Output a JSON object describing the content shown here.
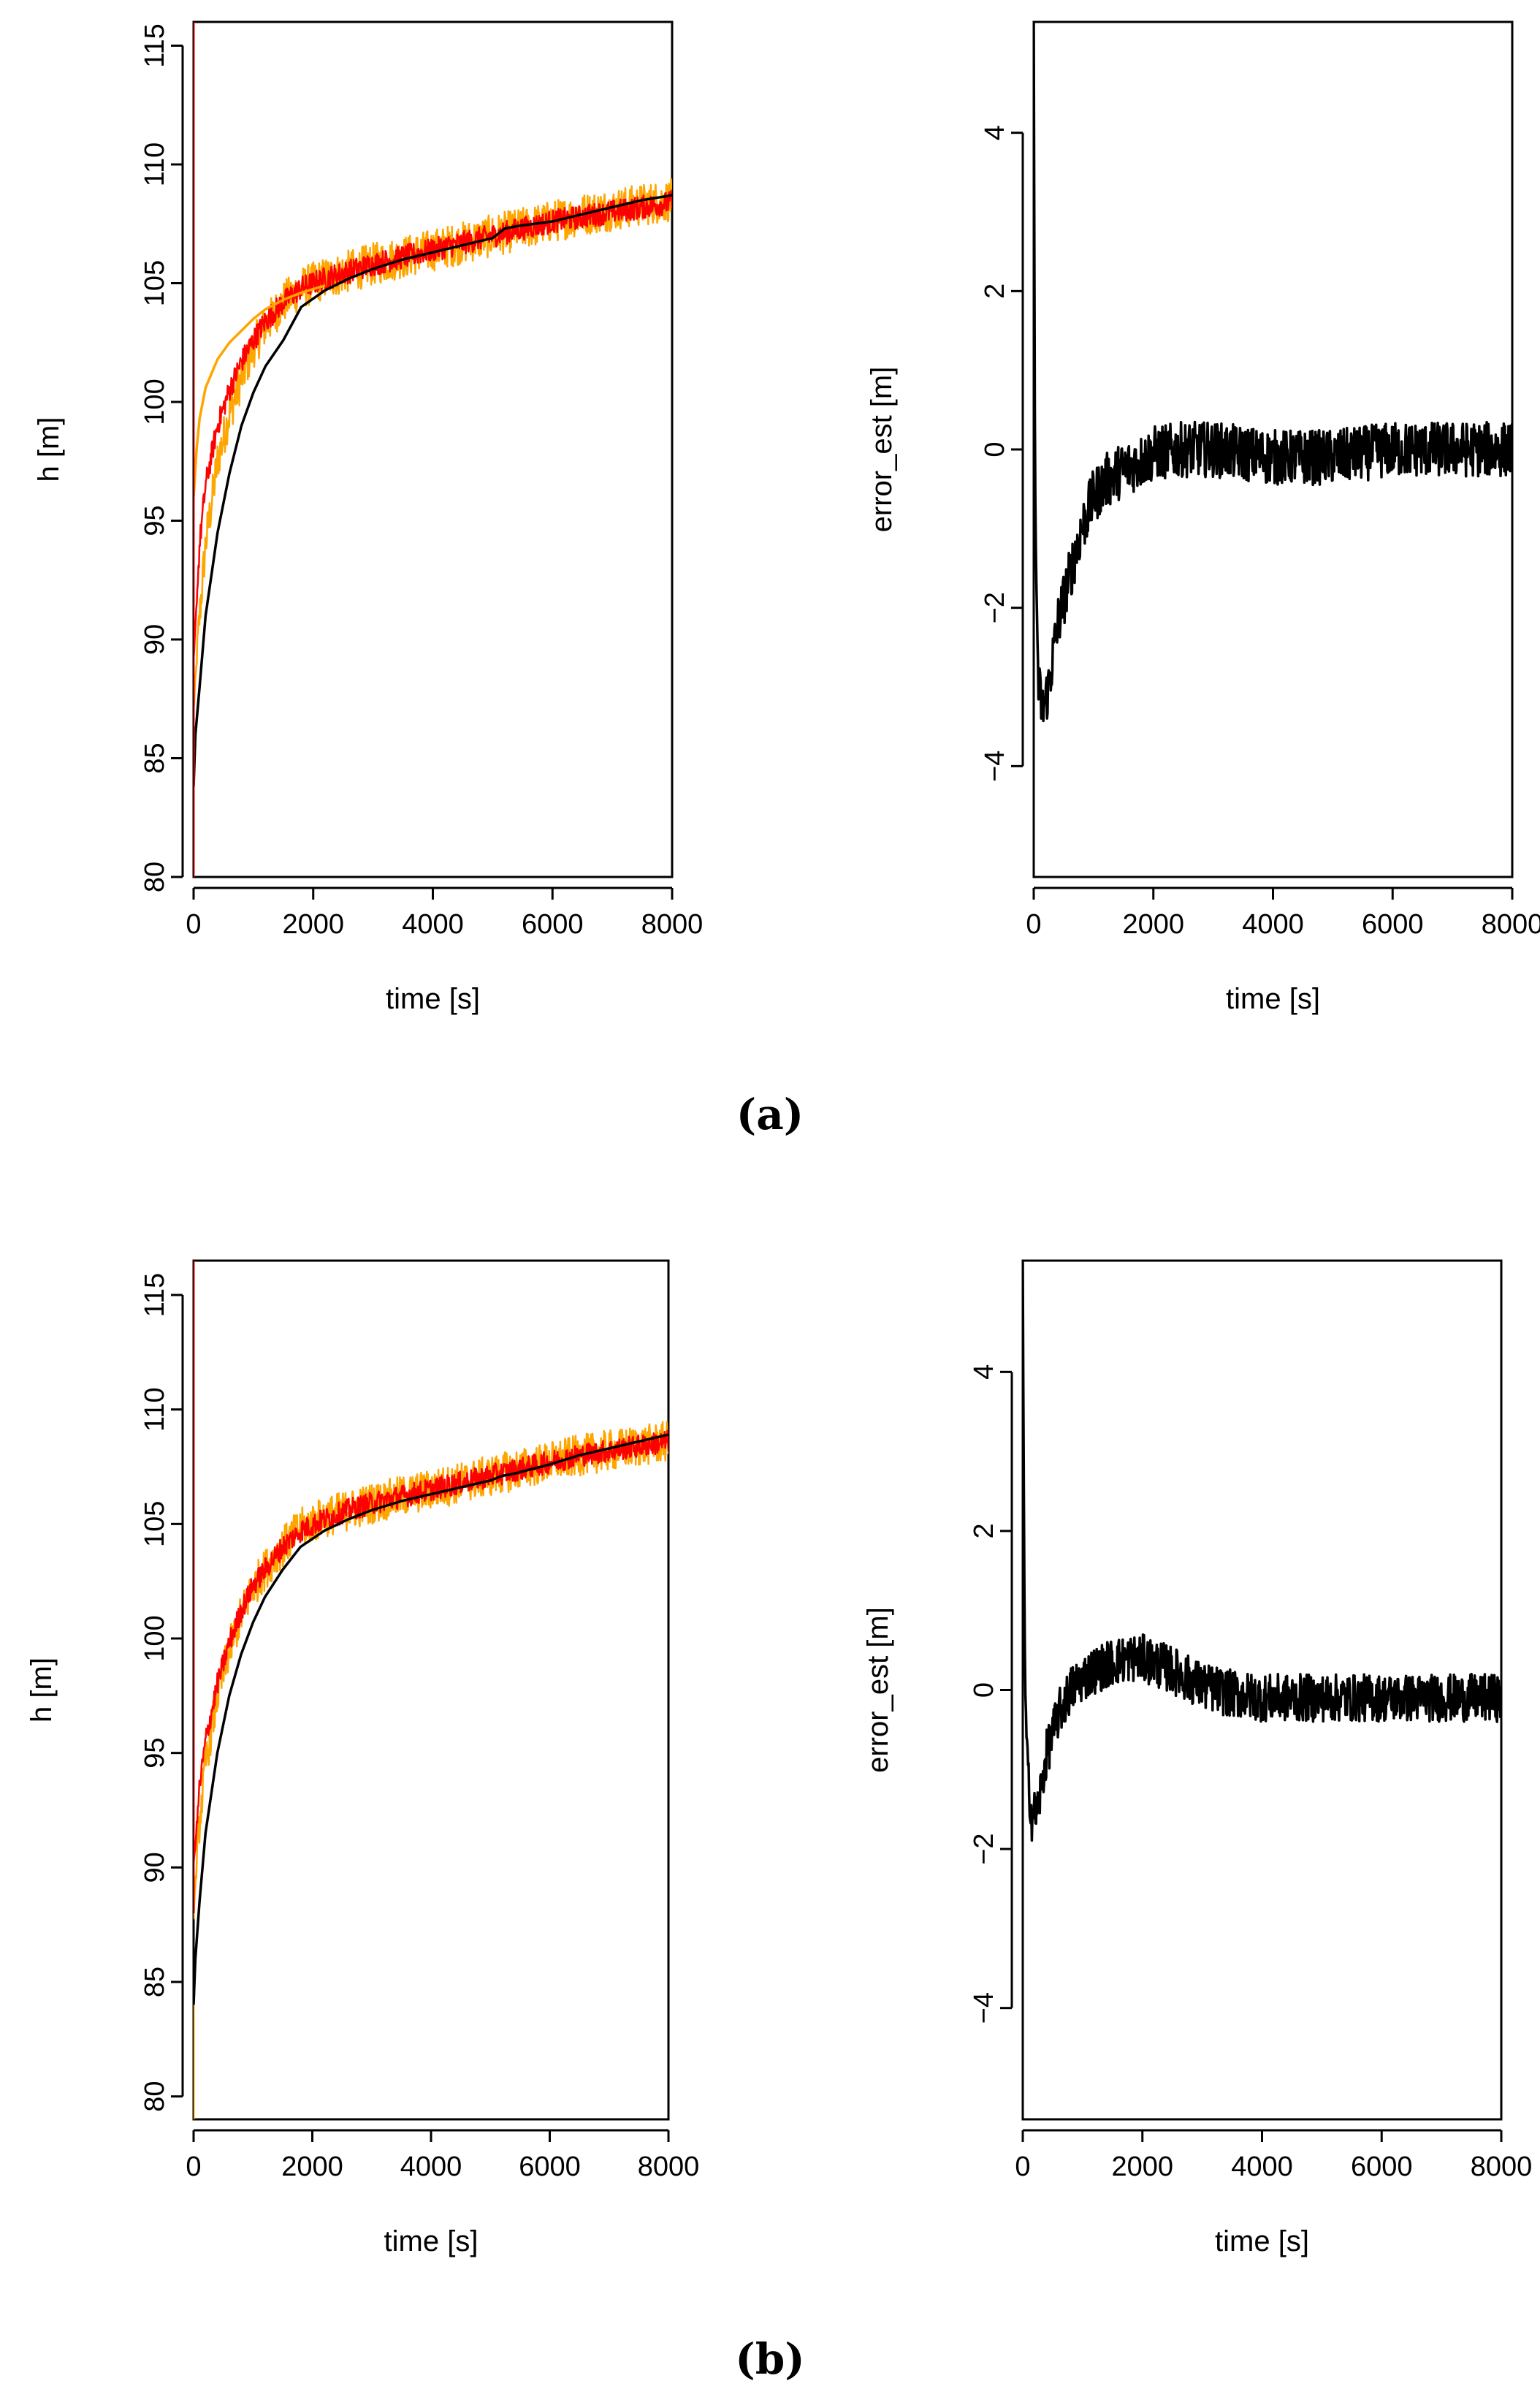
{
  "panels": [
    {
      "label": "(a)",
      "left_chart": {
        "type": "line",
        "xlabel": "time [s]",
        "ylabel": "h [m]",
        "xlim": [
          0,
          8000
        ],
        "ylim": [
          80,
          116
        ],
        "xticks": [
          0,
          2000,
          4000,
          6000,
          8000
        ],
        "yticks": [
          80,
          85,
          90,
          95,
          100,
          105,
          110,
          115
        ],
        "series": [
          {
            "name": "orange-noisy",
            "color": "#FFA500",
            "x": [
              0,
              100,
              200,
              400,
              600,
              800,
              1000,
              1200,
              1500,
              1800,
              2200,
              2600,
              3000,
              3500,
              4000,
              4500,
              5000,
              5500,
              6000,
              6500,
              7000,
              7500,
              8000
            ],
            "values": [
              87,
              91,
              94,
              97.5,
              99.5,
              101,
              102.3,
              103.2,
              104.2,
              104.8,
              105.2,
              105.5,
              105.8,
              106.1,
              106.4,
              106.7,
              107,
              107.3,
              107.6,
              107.9,
              108.1,
              108.3,
              108.5
            ],
            "noise": 0.9
          },
          {
            "name": "red-noisy",
            "color": "#FF0000",
            "x": [
              0,
              100,
              200,
              400,
              600,
              800,
              1000,
              1200,
              1500,
              1800,
              2200,
              2600,
              3000,
              3500,
              4000,
              4500,
              5000,
              5500,
              6000,
              6500,
              7000,
              7500,
              8000
            ],
            "values": [
              89,
              94,
              96.5,
              99,
              100.5,
              101.7,
              102.6,
              103.4,
              104.2,
              104.8,
              105.2,
              105.5,
              105.8,
              106.1,
              106.4,
              106.7,
              107,
              107.3,
              107.6,
              107.8,
              108,
              108.2,
              108.4
            ],
            "noise": 0.5
          },
          {
            "name": "orange-smooth",
            "color": "#FFA500",
            "x": [
              0,
              50,
              100,
              200,
              400,
              600,
              800,
              1000,
              1200,
              1500,
              1800,
              2200
            ],
            "values": [
              96,
              98,
              99.3,
              100.6,
              101.8,
              102.5,
              103,
              103.5,
              103.9,
              104.3,
              104.6,
              104.9
            ],
            "noise": 0
          },
          {
            "name": "black-estimate",
            "color": "#000000",
            "x": [
              0,
              30,
              100,
              200,
              400,
              600,
              800,
              1000,
              1200,
              1500,
              1800,
              2200,
              2600,
              3000,
              3500,
              4000,
              4500,
              5000,
              5200,
              5400,
              6000,
              6500,
              7000,
              7500,
              8000
            ],
            "values": [
              83.8,
              86,
              88,
              91,
              94.5,
              97,
              99,
              100.4,
              101.5,
              102.6,
              104,
              104.7,
              105.2,
              105.6,
              106,
              106.3,
              106.6,
              106.9,
              107.3,
              107.4,
              107.6,
              107.9,
              108.2,
              108.5,
              108.7
            ],
            "noise": 0
          },
          {
            "name": "red-vertical",
            "color": "#FF0000",
            "x": [
              0,
              0
            ],
            "values": [
              116,
              80
            ],
            "noise": 0
          }
        ]
      },
      "right_chart": {
        "type": "line",
        "xlabel": "time [s]",
        "ylabel": "error_est [m]",
        "xlim": [
          0,
          8000
        ],
        "ylim": [
          -5.4,
          5.4
        ],
        "xticks": [
          0,
          2000,
          4000,
          6000,
          8000
        ],
        "yticks": [
          -4,
          -2,
          0,
          2,
          4
        ],
        "series": [
          {
            "name": "error-estimate",
            "color": "#000000",
            "x": [
              0,
              20,
              40,
              80,
              150,
              250,
              400,
              600,
              800,
              1000,
              1200,
              1500,
              1800,
              2000,
              2500,
              3000,
              4000,
              5000,
              6000,
              7000,
              8000
            ],
            "values": [
              5.4,
              0,
              -1.6,
              -3.0,
              -3.3,
              -3.0,
              -2.2,
              -1.6,
              -1.0,
              -0.6,
              -0.4,
              -0.25,
              -0.15,
              -0.05,
              0,
              0,
              -0.1,
              -0.1,
              0,
              0,
              0
            ],
            "noise": 0.35
          }
        ]
      }
    },
    {
      "label": "(b)",
      "left_chart": {
        "type": "line",
        "xlabel": "time [s]",
        "ylabel": "h [m]",
        "xlim": [
          0,
          8000
        ],
        "ylim": [
          79,
          116.5
        ],
        "xticks": [
          0,
          2000,
          4000,
          6000,
          8000
        ],
        "yticks": [
          80,
          85,
          90,
          95,
          100,
          105,
          110,
          115
        ],
        "series": [
          {
            "name": "orange-noisy",
            "color": "#FFA500",
            "x": [
              0,
              100,
              200,
              400,
              600,
              800,
              1000,
              1200,
              1500,
              1800,
              2200,
              2600,
              3000,
              3500,
              4000,
              4500,
              5000,
              5500,
              6000,
              6500,
              7000,
              7500,
              8000
            ],
            "values": [
              88,
              92,
              94.5,
              97.5,
              99.5,
              101,
              102.2,
              103,
              104,
              104.8,
              105.3,
              105.6,
              105.9,
              106.2,
              106.5,
              106.8,
              107.1,
              107.4,
              107.7,
              108,
              108.2,
              108.4,
              108.6
            ],
            "noise": 0.9
          },
          {
            "name": "red-noisy",
            "color": "#FF0000",
            "x": [
              0,
              100,
              200,
              400,
              600,
              800,
              1000,
              1200,
              1500,
              1800,
              2200,
              2600,
              3000,
              3500,
              4000,
              4500,
              5000,
              5500,
              6000,
              6500,
              7000,
              7500,
              8000
            ],
            "values": [
              90,
              93.5,
              95.5,
              98,
              99.8,
              101.2,
              102.3,
              103,
              104,
              104.7,
              105.2,
              105.6,
              105.9,
              106.2,
              106.5,
              106.8,
              107.1,
              107.4,
              107.7,
              108,
              108.2,
              108.4,
              108.6
            ],
            "noise": 0.5
          },
          {
            "name": "black-estimate",
            "color": "#000000",
            "x": [
              0,
              30,
              100,
              200,
              400,
              600,
              800,
              1000,
              1200,
              1500,
              1800,
              2200,
              2600,
              3000,
              3500,
              4000,
              4500,
              5000,
              5200,
              5400,
              6000,
              6500,
              7000,
              7500,
              8000
            ],
            "values": [
              84,
              86,
              88.5,
              91.5,
              95,
              97.5,
              99.3,
              100.7,
              101.8,
              103,
              104,
              104.7,
              105.2,
              105.6,
              106,
              106.3,
              106.6,
              106.9,
              107.1,
              107.2,
              107.6,
              108,
              108.3,
              108.6,
              108.9
            ],
            "noise": 0
          },
          {
            "name": "red-vertical",
            "color": "#FF0000",
            "x": [
              0,
              0
            ],
            "values": [
              116.5,
              88
            ],
            "noise": 0
          },
          {
            "name": "orange-vertical",
            "color": "#FFA500",
            "x": [
              0,
              0
            ],
            "values": [
              84,
              79
            ],
            "noise": 0
          }
        ]
      },
      "right_chart": {
        "type": "line",
        "xlabel": "time [s]",
        "ylabel": "error_est [m]",
        "xlim": [
          0,
          8000
        ],
        "ylim": [
          -5.4,
          5.4
        ],
        "xticks": [
          0,
          2000,
          4000,
          6000,
          8000
        ],
        "yticks": [
          -4,
          -2,
          0,
          2,
          4
        ],
        "series": [
          {
            "name": "error-estimate",
            "color": "#000000",
            "x": [
              0,
              20,
              40,
              80,
              150,
              250,
              400,
              600,
              800,
              1000,
              1200,
              1500,
              1800,
              2000,
              2500,
              3000,
              3500,
              4000,
              5000,
              6000,
              7000,
              8000
            ],
            "values": [
              5.4,
              2.0,
              0,
              -1.0,
              -1.6,
              -1.5,
              -0.8,
              -0.3,
              0,
              0.15,
              0.25,
              0.35,
              0.4,
              0.4,
              0.25,
              0.05,
              -0.05,
              -0.1,
              -0.1,
              -0.1,
              -0.1,
              -0.1
            ],
            "noise": 0.3
          }
        ]
      }
    }
  ]
}
